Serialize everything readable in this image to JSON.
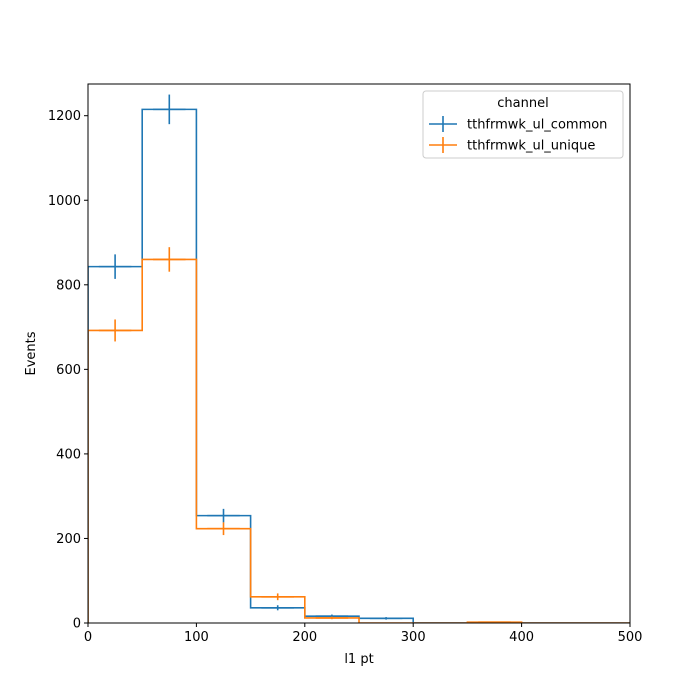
{
  "chart_data": {
    "type": "step-histogram",
    "xlabel": "l1 pt",
    "ylabel": "Events",
    "xlim": [
      0,
      500
    ],
    "ylim": [
      0,
      1275
    ],
    "xticks": [
      0,
      100,
      200,
      300,
      400,
      500
    ],
    "yticks": [
      0,
      200,
      400,
      600,
      800,
      1000,
      1200
    ],
    "grid": false,
    "legend": {
      "title": "channel",
      "placement": "top-right"
    },
    "bin_edges": [
      0,
      50,
      100,
      150,
      200,
      250,
      300,
      350,
      400,
      450,
      500
    ],
    "series": [
      {
        "name": "tthfrmwk_ul_common",
        "color": "#1f77b4",
        "values": [
          843,
          1215,
          254,
          36,
          16,
          11,
          0,
          0,
          0,
          0
        ],
        "errors": [
          29,
          35,
          16,
          6,
          4,
          3,
          0,
          0,
          0,
          0
        ]
      },
      {
        "name": "tthfrmwk_ul_unique",
        "color": "#ff7f0e",
        "values": [
          692,
          860,
          223,
          62,
          12,
          0,
          0,
          2,
          0,
          0
        ],
        "errors": [
          26,
          29,
          15,
          8,
          3,
          0,
          0,
          1,
          0,
          0
        ]
      }
    ]
  }
}
